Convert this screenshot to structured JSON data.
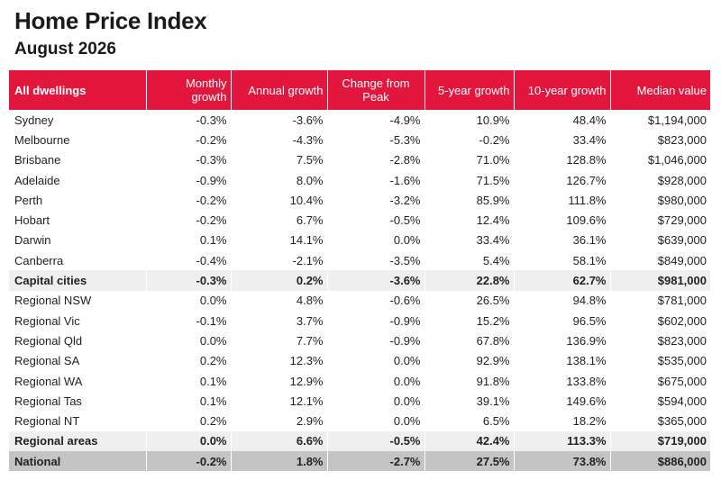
{
  "title": "Home Price Index",
  "subtitle": "August 2026",
  "columns": [
    "All dwellings",
    "Monthly growth",
    "Annual growth",
    "Change from Peak",
    "5-year growth",
    "10-year growth",
    "Median value"
  ],
  "rows": [
    {
      "type": "row",
      "cells": [
        "Sydney",
        "-0.3%",
        "-3.6%",
        "-4.9%",
        "10.9%",
        "48.4%",
        "$1,194,000"
      ]
    },
    {
      "type": "row",
      "cells": [
        "Melbourne",
        "-0.2%",
        "-4.3%",
        "-5.3%",
        "-0.2%",
        "33.4%",
        "$823,000"
      ]
    },
    {
      "type": "row",
      "cells": [
        "Brisbane",
        "-0.3%",
        "7.5%",
        "-2.8%",
        "71.0%",
        "128.8%",
        "$1,046,000"
      ]
    },
    {
      "type": "row",
      "cells": [
        "Adelaide",
        "-0.9%",
        "8.0%",
        "-1.6%",
        "71.5%",
        "126.7%",
        "$928,000"
      ]
    },
    {
      "type": "row",
      "cells": [
        "Perth",
        "-0.2%",
        "10.4%",
        "-3.2%",
        "85.9%",
        "111.8%",
        "$980,000"
      ]
    },
    {
      "type": "row",
      "cells": [
        "Hobart",
        "-0.2%",
        "6.7%",
        "-0.5%",
        "12.4%",
        "109.6%",
        "$729,000"
      ]
    },
    {
      "type": "row",
      "cells": [
        "Darwin",
        "0.1%",
        "14.1%",
        "0.0%",
        "33.4%",
        "36.1%",
        "$639,000"
      ]
    },
    {
      "type": "row",
      "cells": [
        "Canberra",
        "-0.4%",
        "-2.1%",
        "-3.5%",
        "5.4%",
        "58.1%",
        "$849,000"
      ]
    },
    {
      "type": "sub",
      "cells": [
        "Capital cities",
        "-0.3%",
        "0.2%",
        "-3.6%",
        "22.8%",
        "62.7%",
        "$981,000"
      ]
    },
    {
      "type": "row",
      "cells": [
        "Regional NSW",
        "0.0%",
        "4.8%",
        "-0.6%",
        "26.5%",
        "94.8%",
        "$781,000"
      ]
    },
    {
      "type": "row",
      "cells": [
        "Regional Vic",
        "-0.1%",
        "3.7%",
        "-0.9%",
        "15.2%",
        "96.5%",
        "$602,000"
      ]
    },
    {
      "type": "row",
      "cells": [
        "Regional Qld",
        "0.0%",
        "7.7%",
        "-0.9%",
        "67.8%",
        "136.9%",
        "$823,000"
      ]
    },
    {
      "type": "row",
      "cells": [
        "Regional SA",
        "0.2%",
        "12.3%",
        "0.0%",
        "92.9%",
        "138.1%",
        "$535,000"
      ]
    },
    {
      "type": "row",
      "cells": [
        "Regional WA",
        "0.1%",
        "12.9%",
        "0.0%",
        "91.8%",
        "133.8%",
        "$675,000"
      ]
    },
    {
      "type": "row",
      "cells": [
        "Regional Tas",
        "0.1%",
        "12.1%",
        "0.0%",
        "39.1%",
        "149.6%",
        "$594,000"
      ]
    },
    {
      "type": "row",
      "cells": [
        "Regional NT",
        "0.2%",
        "2.9%",
        "0.0%",
        "6.5%",
        "18.2%",
        "$365,000"
      ]
    },
    {
      "type": "sub",
      "cells": [
        "Regional areas",
        "0.0%",
        "6.6%",
        "-0.5%",
        "42.4%",
        "113.3%",
        "$719,000"
      ]
    },
    {
      "type": "nat",
      "cells": [
        "National",
        "-0.2%",
        "1.8%",
        "-2.7%",
        "27.5%",
        "73.8%",
        "$886,000"
      ]
    }
  ],
  "colors": {
    "header": "#e3173e",
    "subtotal": "#efefef",
    "national": "#c4c4c4"
  }
}
